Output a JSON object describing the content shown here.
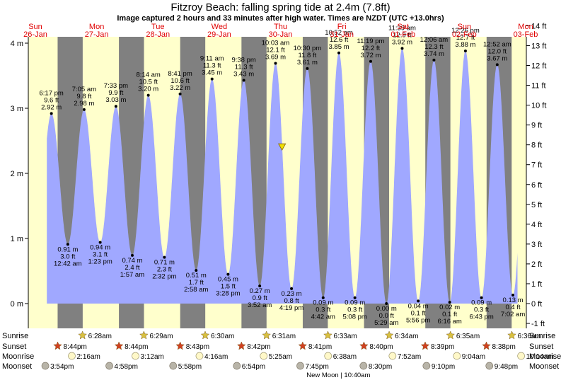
{
  "header": {
    "title": "Fitzroy Beach: falling  spring tide at 2.4m (7.8ft)",
    "subtitle": "Image captured 2 hours and 33 minutes after high water. Times are NZDT (UTC +13.0hrs)"
  },
  "chart_data": {
    "type": "area",
    "title": "Fitzroy Beach: falling  spring tide at 2.4m (7.8ft)",
    "ylim_m": [
      -0.3,
      4.3
    ],
    "y_left_ticks": [
      "0 m",
      "1 m",
      "2 m",
      "3 m",
      "4 m"
    ],
    "y_right_ticks": [
      "-1 ft",
      "0 ft",
      "1 ft",
      "2 ft",
      "3 ft",
      "4 ft",
      "5 ft",
      "6 ft",
      "7 ft",
      "8 ft",
      "9 ft",
      "10 ft",
      "11 ft",
      "12 ft",
      "13 ft",
      "14 ft"
    ],
    "days": [
      {
        "dow": "Sun",
        "date": "26-Jan"
      },
      {
        "dow": "Mon",
        "date": "27-Jan"
      },
      {
        "dow": "Tue",
        "date": "28-Jan"
      },
      {
        "dow": "Wed",
        "date": "29-Jan"
      },
      {
        "dow": "Thu",
        "date": "30-Jan"
      },
      {
        "dow": "Fri",
        "date": "31-Jan"
      },
      {
        "dow": "Sat",
        "date": "01-Feb"
      },
      {
        "dow": "Sun",
        "date": "02-Feb"
      },
      {
        "dow": "Mon",
        "date": "03-Feb"
      }
    ],
    "series": [
      {
        "values": [
          {
            "day": 0,
            "t": "18:17",
            "h": 2.92,
            "high": true,
            "time": "6:17 pm",
            "ft": "9.6 ft",
            "m": "2.92 m"
          },
          {
            "day": 1,
            "t": "00:42",
            "h": 0.91,
            "high": false,
            "time": "12:42 am",
            "ft": "3.0 ft",
            "m": "0.91 m"
          },
          {
            "day": 1,
            "t": "07:05",
            "h": 2.98,
            "high": true,
            "time": "7:05 am",
            "ft": "9.8 ft",
            "m": "2.98 m"
          },
          {
            "day": 1,
            "t": "13:23",
            "h": 0.94,
            "high": false,
            "time": "1:23 pm",
            "ft": "3.1 ft",
            "m": "0.94 m"
          },
          {
            "day": 1,
            "t": "19:33",
            "h": 3.03,
            "high": true,
            "time": "7:33 pm",
            "ft": "9.9 ft",
            "m": "3.03 m"
          },
          {
            "day": 2,
            "t": "01:57",
            "h": 0.74,
            "high": false,
            "time": "1:57 am",
            "ft": "2.4 ft",
            "m": "0.74 m"
          },
          {
            "day": 2,
            "t": "08:14",
            "h": 3.2,
            "high": true,
            "time": "8:14 am",
            "ft": "10.5 ft",
            "m": "3.20 m"
          },
          {
            "day": 2,
            "t": "14:32",
            "h": 0.71,
            "high": false,
            "time": "2:32 pm",
            "ft": "2.3 ft",
            "m": "0.71 m"
          },
          {
            "day": 2,
            "t": "20:41",
            "h": 3.22,
            "high": true,
            "time": "8:41 pm",
            "ft": "10.6 ft",
            "m": "3.22 m"
          },
          {
            "day": 3,
            "t": "02:58",
            "h": 0.51,
            "high": false,
            "time": "2:58 am",
            "ft": "1.7 ft",
            "m": "0.51 m"
          },
          {
            "day": 3,
            "t": "09:11",
            "h": 3.45,
            "high": true,
            "time": "9:11 am",
            "ft": "11.3 ft",
            "m": "3.45 m"
          },
          {
            "day": 3,
            "t": "15:28",
            "h": 0.45,
            "high": false,
            "time": "3:28 pm",
            "ft": "1.5 ft",
            "m": "0.45 m"
          },
          {
            "day": 3,
            "t": "21:38",
            "h": 3.43,
            "high": true,
            "time": "9:38 pm",
            "ft": "11.3 ft",
            "m": "3.43 m"
          },
          {
            "day": 4,
            "t": "03:52",
            "h": 0.27,
            "high": false,
            "time": "3:52 am",
            "ft": "0.9 ft",
            "m": "0.27 m"
          },
          {
            "day": 4,
            "t": "10:03",
            "h": 3.69,
            "high": true,
            "time": "10:03 am",
            "ft": "12.1 ft",
            "m": "3.69 m"
          },
          {
            "day": 4,
            "t": "16:19",
            "h": 0.23,
            "high": false,
            "time": "4:19 pm",
            "ft": "0.8 ft",
            "m": "0.23 m"
          },
          {
            "day": 4,
            "t": "22:30",
            "h": 3.61,
            "high": true,
            "time": "10:30 pm",
            "ft": "11.8 ft",
            "m": "3.61 m"
          },
          {
            "day": 5,
            "t": "04:42",
            "h": 0.09,
            "high": false,
            "time": "4:42 am",
            "ft": "0.3 ft",
            "m": "0.09 m"
          },
          {
            "day": 5,
            "t": "10:52",
            "h": 3.85,
            "high": true,
            "time": "10:52 am",
            "ft": "12.6 ft",
            "m": "3.85 m"
          },
          {
            "day": 5,
            "t": "17:08",
            "h": 0.09,
            "high": false,
            "time": "5:08 pm",
            "ft": "0.3 ft",
            "m": "0.09 m"
          },
          {
            "day": 5,
            "t": "23:19",
            "h": 3.72,
            "high": true,
            "time": "11:19 pm",
            "ft": "12.2 ft",
            "m": "3.72 m"
          },
          {
            "day": 6,
            "t": "05:29",
            "h": 0.0,
            "high": false,
            "time": "5:29 am",
            "ft": "0.0 ft",
            "m": "0.00 m"
          },
          {
            "day": 6,
            "t": "11:39",
            "h": 3.92,
            "high": true,
            "time": "11:39 am",
            "ft": "12.9 ft",
            "m": "3.92 m"
          },
          {
            "day": 6,
            "t": "17:56",
            "h": 0.04,
            "high": false,
            "time": "5:56 pm",
            "ft": "0.1 ft",
            "m": "0.04 m"
          },
          {
            "day": 7,
            "t": "00:06",
            "h": 3.74,
            "high": true,
            "time": "12:06 am",
            "ft": "12.3 ft",
            "m": "3.74 m"
          },
          {
            "day": 7,
            "t": "06:16",
            "h": 0.02,
            "high": false,
            "time": "6:16 am",
            "ft": "0.1 ft",
            "m": "0.02 m"
          },
          {
            "day": 7,
            "t": "12:26",
            "h": 3.88,
            "high": true,
            "time": "12:26 pm",
            "ft": "12.7 ft",
            "m": "3.88 m"
          },
          {
            "day": 7,
            "t": "18:43",
            "h": 0.09,
            "high": false,
            "time": "6:43 pm",
            "ft": "0.3 ft",
            "m": "0.09 m"
          },
          {
            "day": 8,
            "t": "00:52",
            "h": 3.67,
            "high": true,
            "time": "12:52 am",
            "ft": "12.0 ft",
            "m": "3.67 m"
          },
          {
            "day": 8,
            "t": "07:02",
            "h": 0.13,
            "high": false,
            "time": "7:02 am",
            "ft": "0.4 ft",
            "m": "0.13 m"
          }
        ]
      }
    ],
    "current": {
      "day": 4,
      "t": "12:36",
      "h": 2.4
    },
    "night": {
      "sunset": "20:43",
      "sunrise": "06:32"
    },
    "sunrise": [
      {
        "day": 1,
        "t": "06:28",
        "label": "6:28am"
      },
      {
        "day": 2,
        "t": "06:29",
        "label": "6:29am"
      },
      {
        "day": 3,
        "t": "06:30",
        "label": "6:30am"
      },
      {
        "day": 4,
        "t": "06:31",
        "label": "6:31am"
      },
      {
        "day": 5,
        "t": "06:33",
        "label": "6:33am"
      },
      {
        "day": 6,
        "t": "06:34",
        "label": "6:34am"
      },
      {
        "day": 7,
        "t": "06:35",
        "label": "6:35am"
      },
      {
        "day": 8,
        "t": "06:36",
        "label": "6:36am"
      }
    ],
    "sunset": [
      {
        "day": 0,
        "t": "20:44",
        "label": "8:44pm"
      },
      {
        "day": 1,
        "t": "20:44",
        "label": "8:44pm"
      },
      {
        "day": 2,
        "t": "20:43",
        "label": "8:43pm"
      },
      {
        "day": 3,
        "t": "20:42",
        "label": "8:42pm"
      },
      {
        "day": 4,
        "t": "20:41",
        "label": "8:41pm"
      },
      {
        "day": 5,
        "t": "20:40",
        "label": "8:40pm"
      },
      {
        "day": 6,
        "t": "20:39",
        "label": "8:39pm"
      },
      {
        "day": 7,
        "t": "20:38",
        "label": "8:38pm"
      }
    ],
    "moonrise": [
      {
        "day": 1,
        "t": "02:16",
        "label": "2:16am"
      },
      {
        "day": 2,
        "t": "03:12",
        "label": "3:12am"
      },
      {
        "day": 3,
        "t": "04:16",
        "label": "4:16am"
      },
      {
        "day": 4,
        "t": "05:25",
        "label": "5:25am"
      },
      {
        "day": 5,
        "t": "06:38",
        "label": "6:38am"
      },
      {
        "day": 6,
        "t": "07:52",
        "label": "7:52am"
      },
      {
        "day": 7,
        "t": "09:04",
        "label": "9:04am"
      },
      {
        "day": 8,
        "t": "10:14",
        "label": "10:14am"
      }
    ],
    "moonset": [
      {
        "day": 0,
        "t": "15:54",
        "label": "3:54pm"
      },
      {
        "day": 1,
        "t": "16:58",
        "label": "4:58pm"
      },
      {
        "day": 2,
        "t": "17:58",
        "label": "5:58pm"
      },
      {
        "day": 3,
        "t": "18:54",
        "label": "6:54pm"
      },
      {
        "day": 4,
        "t": "19:45",
        "label": "7:45pm"
      },
      {
        "day": 5,
        "t": "20:30",
        "label": "8:30pm"
      },
      {
        "day": 6,
        "t": "21:10",
        "label": "9:10pm"
      },
      {
        "day": 7,
        "t": "21:48",
        "label": "9:48pm"
      }
    ],
    "row_labels": {
      "sunrise": "Sunrise",
      "sunset": "Sunset",
      "moonrise": "Moonrise",
      "moonset": "Moonset"
    },
    "moon_phase": {
      "day": 5,
      "t": "10:40",
      "label": "New Moon | 10:40am"
    },
    "colors": {
      "day_bg": "#ffffcc",
      "night_bg": "#808080",
      "tide_fill": "#a0a8ff",
      "day_label": "#e00000",
      "sunrise_star": "#d8c040",
      "sunset_star": "#d04020",
      "moonrise_disc": "#fff8c8",
      "moonset_disc": "#b8b4a8",
      "current_marker": "#f0e000"
    }
  }
}
